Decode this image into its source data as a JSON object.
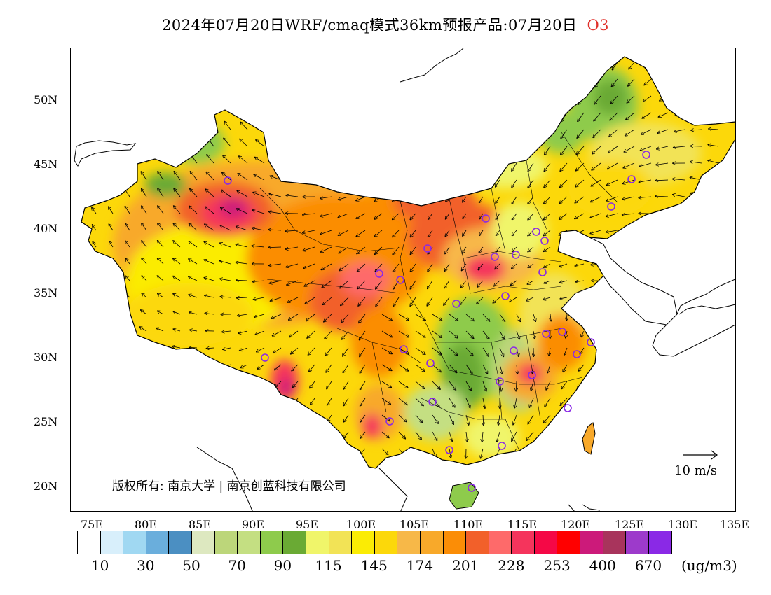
{
  "title": {
    "main": "2024年07月20日WRF/cmaq模式36km预报产品:07月20日",
    "species": "O3"
  },
  "latitude_labels": [
    "50N",
    "45N",
    "40N",
    "35N",
    "30N",
    "25N",
    "20N"
  ],
  "longitude_labels": [
    "75E",
    "80E",
    "85E",
    "90E",
    "95E",
    "100E",
    "105E",
    "110E",
    "115E",
    "120E",
    "125E",
    "130E",
    "135E"
  ],
  "colorbar": {
    "colors": [
      "#ffffff",
      "#d8effb",
      "#a0d8f2",
      "#6aaedc",
      "#4b8fc2",
      "#dde8c0",
      "#bcd67a",
      "#c4df82",
      "#8ecb4c",
      "#6aaa34",
      "#f0f56a",
      "#f2e356",
      "#fbec04",
      "#fcd80a",
      "#f7b848",
      "#f8a92a",
      "#fb8d06",
      "#f2602a",
      "#fe6a6a",
      "#f5345c",
      "#f50846",
      "#ff0000",
      "#cc1a7a",
      "#a8345c",
      "#9d3acb",
      "#8a29e6"
    ],
    "labels": [
      "10",
      "30",
      "50",
      "70",
      "90",
      "115",
      "145",
      "174",
      "201",
      "228",
      "253",
      "400",
      "670"
    ],
    "unit": "(ug/m3)"
  },
  "copyright": "版权所有: 南京大学 | 南京创蓝科技有限公司",
  "wind_reference": "10 m/s"
}
